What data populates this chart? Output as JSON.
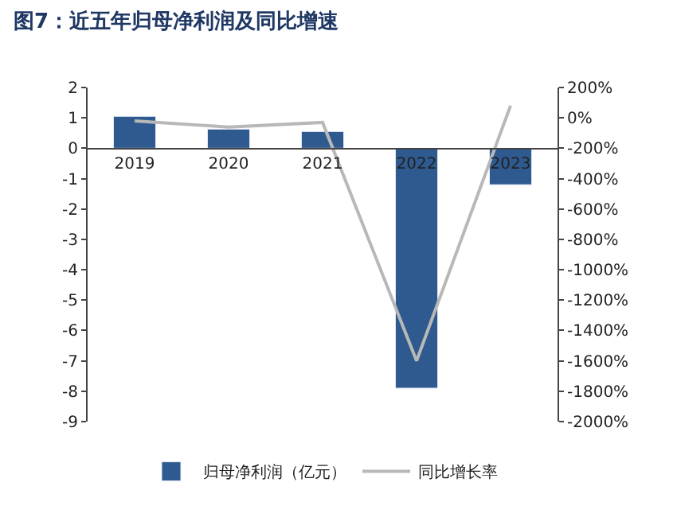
{
  "chart_data": {
    "type": "bar",
    "title": "图7：近五年归母净利润及同比增速",
    "categories": [
      "2019",
      "2020",
      "2021",
      "2022",
      "2023"
    ],
    "series": [
      {
        "name": "归母净利润（亿元）",
        "color": "#2f5a8f",
        "values": [
          1.05,
          0.63,
          0.55,
          -7.9,
          -1.2
        ]
      },
      {
        "name": "同比增长率",
        "type": "line",
        "axis": "y2",
        "color": "#b8b8b8",
        "values": [
          -20,
          -60,
          -30,
          -1600,
          80
        ]
      }
    ],
    "ylim": [
      -9,
      2
    ],
    "yticks": [
      -9,
      -8,
      -7,
      -6,
      -5,
      -4,
      -3,
      -2,
      -1,
      0,
      1,
      2
    ],
    "y2lim": [
      -2000,
      200
    ],
    "y2ticks": [
      {
        "value": -2000,
        "label": "-2000%"
      },
      {
        "value": -1800,
        "label": "-1800%"
      },
      {
        "value": -1600,
        "label": "-1600%"
      },
      {
        "value": -1400,
        "label": "-1400%"
      },
      {
        "value": -1200,
        "label": "-1200%"
      },
      {
        "value": -1000,
        "label": "-1000%"
      },
      {
        "value": -800,
        "label": "-800%"
      },
      {
        "value": -600,
        "label": "-600%"
      },
      {
        "value": -400,
        "label": "-400%"
      },
      {
        "value": -200,
        "label": "-200%"
      },
      {
        "value": 0,
        "label": "0%"
      },
      {
        "value": 200,
        "label": "200%"
      }
    ],
    "legend": "bottom"
  }
}
